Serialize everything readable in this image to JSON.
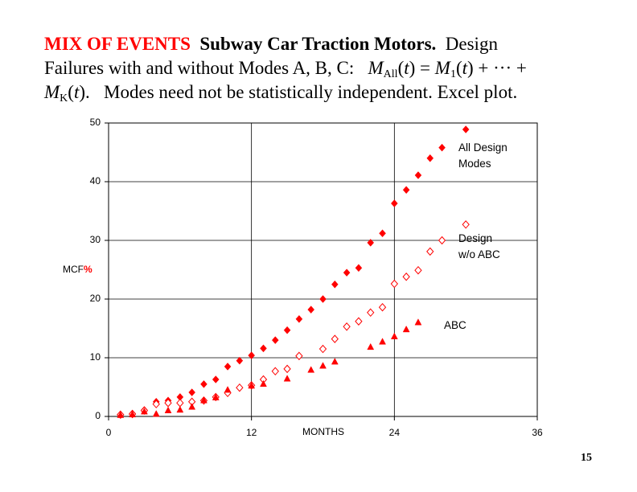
{
  "header": {
    "label": "MIX OF EVENTS",
    "subject": "Subway Car Traction Motors.",
    "line1_end": "Design",
    "line2": "Failures with and without Modes A, B, C:",
    "formula": [
      "M",
      "All",
      "(",
      "t",
      ") = ",
      "M",
      "1",
      "(",
      "t",
      ") + ··· +",
      "M",
      "K",
      "(",
      "t",
      ")."
    ],
    "note": "Modes need not be statistically independent.  Excel plot."
  },
  "chart_data": {
    "type": "scatter",
    "ylabel": "MCF",
    "ylabel_unit": "%",
    "xlabel": "MONTHS",
    "xlim": [
      0,
      36
    ],
    "xticks": [
      0,
      12,
      24,
      36
    ],
    "ylim": [
      0,
      50
    ],
    "yticks": [
      0,
      10,
      20,
      30,
      40,
      50
    ],
    "grid": true,
    "series": [
      {
        "name": "All Design Modes",
        "color": "#ff0000",
        "marker": "diamond",
        "x": [
          1,
          2,
          3,
          4,
          5,
          6,
          7,
          8,
          9,
          10,
          11,
          12,
          13,
          14,
          15,
          16,
          17,
          18,
          19,
          20,
          21,
          22,
          23,
          24,
          25,
          26,
          27,
          28,
          30
        ],
        "values": [
          0.3,
          0.5,
          1.1,
          2.5,
          2.7,
          3.3,
          4.1,
          5.5,
          6.3,
          8.5,
          9.5,
          10.4,
          11.6,
          13.0,
          14.7,
          16.6,
          18.2,
          20.0,
          22.5,
          24.5,
          25.3,
          29.6,
          31.2,
          36.3,
          38.6,
          41.1,
          44.0,
          45.8,
          48.9
        ]
      },
      {
        "name": "Design w/o ABC",
        "color": "#ff0000",
        "marker": "open-diamond",
        "x": [
          1,
          2,
          3,
          4,
          5,
          6,
          7,
          8,
          9,
          10,
          11,
          12,
          13,
          14,
          15,
          16,
          18,
          19,
          20,
          21,
          22,
          23,
          24,
          25,
          26,
          27,
          28,
          30
        ],
        "values": [
          0.3,
          0.4,
          1.0,
          2.1,
          2.3,
          2.3,
          2.5,
          2.7,
          3.3,
          4.0,
          4.9,
          5.3,
          6.3,
          7.7,
          8.1,
          10.3,
          11.5,
          13.2,
          15.3,
          16.2,
          17.7,
          18.6,
          22.6,
          23.8,
          24.9,
          28.1,
          30.0,
          32.7
        ]
      },
      {
        "name": "ABC",
        "color": "#ff0000",
        "marker": "triangle",
        "x": [
          1,
          2,
          3,
          4,
          5,
          6,
          7,
          8,
          9,
          10,
          12,
          13,
          15,
          17,
          18,
          19,
          22,
          23,
          24,
          25,
          26
        ],
        "values": [
          0.2,
          0.3,
          0.8,
          0.4,
          1.0,
          1.1,
          1.6,
          2.7,
          3.2,
          4.5,
          5.2,
          5.5,
          6.4,
          7.9,
          8.6,
          9.3,
          11.8,
          12.7,
          13.6,
          14.8,
          16.0
        ]
      }
    ]
  },
  "page_number": "15"
}
